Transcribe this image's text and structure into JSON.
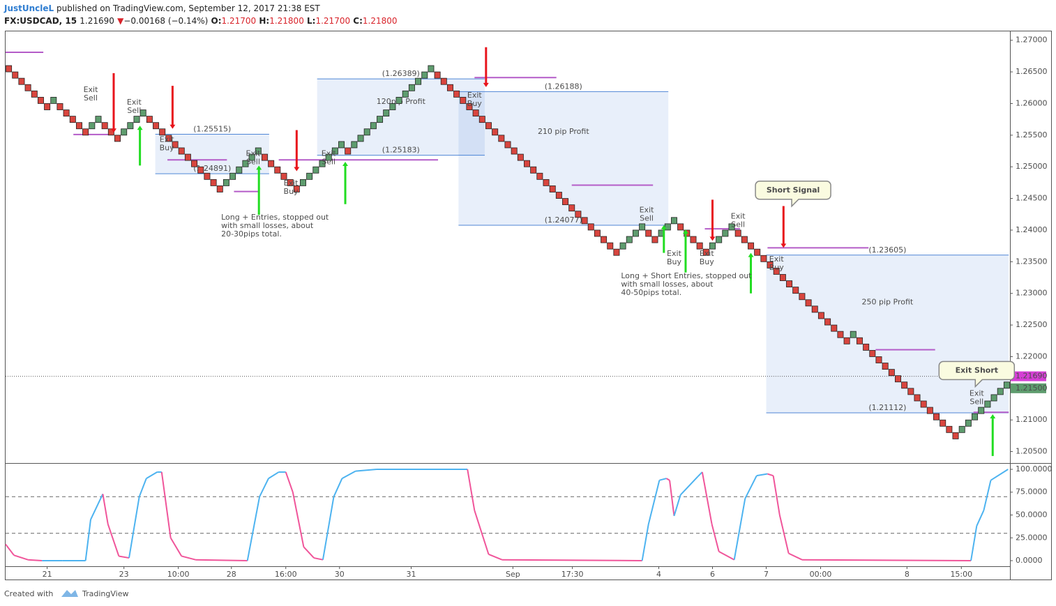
{
  "header": {
    "author": "JustUncleL",
    "published": "published on TradingView.com, September 12, 2017 21:38 EST",
    "symbol": "FX:USDCAD, 15",
    "last": "1.21690",
    "arrow": "▼",
    "change": "−0.00168 (−0.14%)",
    "ohlc": [
      {
        "label": "O:",
        "value": "1.21700"
      },
      {
        "label": "H:",
        "value": "1.21800"
      },
      {
        "label": "L:",
        "value": "1.21700"
      },
      {
        "label": "C:",
        "value": "1.21800"
      }
    ]
  },
  "chart_data": [
    {
      "type": "renko",
      "up_color": "#5e9c6e",
      "down_color": "#d8453e",
      "xlim": [
        0,
        157
      ],
      "ylim": [
        1.2033,
        1.2714
      ],
      "yticks": [
        {
          "value": 1.27,
          "label": "1.27000"
        },
        {
          "value": 1.265,
          "label": "1.26500"
        },
        {
          "value": 1.26,
          "label": "1.26000"
        },
        {
          "value": 1.255,
          "label": "1.25500"
        },
        {
          "value": 1.25,
          "label": "1.25000"
        },
        {
          "value": 1.245,
          "label": "1.24500"
        },
        {
          "value": 1.24,
          "label": "1.24000"
        },
        {
          "value": 1.235,
          "label": "1.23500"
        },
        {
          "value": 1.23,
          "label": "1.23000"
        },
        {
          "value": 1.225,
          "label": "1.22500"
        },
        {
          "value": 1.22,
          "label": "1.22000"
        },
        {
          "value": 1.215,
          "label": "1.21500"
        },
        {
          "value": 1.21,
          "label": "1.21000"
        },
        {
          "value": 1.205,
          "label": "1.20500"
        }
      ],
      "open": [
        1.266,
        1.265,
        1.264,
        1.263,
        1.262,
        1.261,
        1.26,
        1.26,
        1.26,
        1.259,
        1.258,
        1.257,
        1.256,
        1.256,
        1.257,
        1.257,
        1.256,
        1.255,
        1.255,
        1.256,
        1.257,
        1.258,
        1.258,
        1.257,
        1.256,
        1.255,
        1.254,
        1.253,
        1.252,
        1.251,
        1.25,
        1.249,
        1.248,
        1.247,
        1.247,
        1.248,
        1.249,
        1.25,
        1.251,
        1.252,
        1.252,
        1.251,
        1.25,
        1.249,
        1.248,
        1.247,
        1.247,
        1.248,
        1.249,
        1.25,
        1.251,
        1.252,
        1.253,
        1.253,
        1.253,
        1.254,
        1.255,
        1.256,
        1.257,
        1.258,
        1.259,
        1.26,
        1.261,
        1.262,
        1.263,
        1.264,
        1.265,
        1.265,
        1.264,
        1.263,
        1.262,
        1.261,
        1.26,
        1.259,
        1.258,
        1.257,
        1.256,
        1.255,
        1.254,
        1.253,
        1.252,
        1.251,
        1.25,
        1.249,
        1.248,
        1.247,
        1.246,
        1.245,
        1.244,
        1.243,
        1.242,
        1.241,
        1.24,
        1.239,
        1.238,
        1.237,
        1.237,
        1.238,
        1.239,
        1.24,
        1.24,
        1.239,
        1.239,
        1.24,
        1.241,
        1.241,
        1.24,
        1.239,
        1.238,
        1.237,
        1.237,
        1.238,
        1.239,
        1.24,
        1.24,
        1.239,
        1.238,
        1.237,
        1.236,
        1.235,
        1.234,
        1.233,
        1.232,
        1.231,
        1.23,
        1.229,
        1.228,
        1.227,
        1.226,
        1.225,
        1.224,
        1.223,
        1.223,
        1.223,
        1.222,
        1.221,
        1.22,
        1.219,
        1.218,
        1.217,
        1.216,
        1.215,
        1.214,
        1.213,
        1.212,
        1.211,
        1.21,
        1.209,
        1.208,
        1.208,
        1.209,
        1.21,
        1.211,
        1.212,
        1.213,
        1.214,
        1.215
      ],
      "close": [
        1.265,
        1.264,
        1.263,
        1.262,
        1.261,
        1.26,
        1.259,
        1.261,
        1.259,
        1.258,
        1.257,
        1.256,
        1.255,
        1.257,
        1.258,
        1.256,
        1.255,
        1.254,
        1.256,
        1.257,
        1.258,
        1.259,
        1.257,
        1.256,
        1.255,
        1.254,
        1.253,
        1.252,
        1.251,
        1.25,
        1.249,
        1.248,
        1.247,
        1.246,
        1.248,
        1.249,
        1.25,
        1.251,
        1.252,
        1.253,
        1.251,
        1.25,
        1.249,
        1.248,
        1.247,
        1.246,
        1.248,
        1.249,
        1.25,
        1.251,
        1.252,
        1.253,
        1.254,
        1.252,
        1.254,
        1.255,
        1.256,
        1.257,
        1.258,
        1.259,
        1.26,
        1.261,
        1.262,
        1.263,
        1.264,
        1.265,
        1.266,
        1.264,
        1.263,
        1.262,
        1.261,
        1.26,
        1.259,
        1.258,
        1.257,
        1.256,
        1.255,
        1.254,
        1.253,
        1.252,
        1.251,
        1.25,
        1.249,
        1.248,
        1.247,
        1.246,
        1.245,
        1.244,
        1.243,
        1.242,
        1.241,
        1.24,
        1.239,
        1.238,
        1.237,
        1.236,
        1.238,
        1.239,
        1.24,
        1.241,
        1.239,
        1.238,
        1.24,
        1.241,
        1.242,
        1.24,
        1.239,
        1.238,
        1.237,
        1.236,
        1.238,
        1.239,
        1.24,
        1.241,
        1.239,
        1.238,
        1.237,
        1.236,
        1.235,
        1.234,
        1.233,
        1.232,
        1.231,
        1.23,
        1.229,
        1.228,
        1.227,
        1.226,
        1.225,
        1.224,
        1.223,
        1.222,
        1.224,
        1.222,
        1.221,
        1.22,
        1.219,
        1.218,
        1.217,
        1.216,
        1.215,
        1.214,
        1.213,
        1.212,
        1.211,
        1.21,
        1.209,
        1.208,
        1.207,
        1.209,
        1.21,
        1.211,
        1.212,
        1.213,
        1.214,
        1.215,
        1.216
      ],
      "zones": [
        {
          "x": [
            48.7,
            74.9
          ],
          "y": [
            1.25183,
            1.26389
          ],
          "top_label": "(1.26389)",
          "bottom_label": "(1.25183)",
          "label": "120pip Profit"
        },
        {
          "x": [
            70.8,
            103.6
          ],
          "y": [
            1.24077,
            1.26188
          ],
          "top_label": "(1.26188)",
          "bottom_label": "(1.24077)",
          "label": "210 pip Profit"
        },
        {
          "x": [
            118.9,
            156.8
          ],
          "y": [
            1.21112,
            1.23605
          ],
          "top_label": "(1.23605)",
          "bottom_label": "(1.21112)",
          "label": "250 pip Profit"
        },
        {
          "x": [
            23.4,
            41.2
          ],
          "y": [
            1.24891,
            1.25515
          ],
          "top_label": "(1.25515)",
          "bottom_label": "(1.24891)"
        }
      ],
      "stops": [
        {
          "x": [
            0,
            5.9
          ],
          "y": 1.2681
        },
        {
          "x": [
            10.6,
            16.6
          ],
          "y": 1.2551
        },
        {
          "x": [
            25.3,
            34.6
          ],
          "y": 1.2511
        },
        {
          "x": [
            35.7,
            39.5
          ],
          "y": 1.2461
        },
        {
          "x": [
            42.7,
            67.6
          ],
          "y": 1.2511
        },
        {
          "x": [
            73.3,
            86.1
          ],
          "y": 1.2641
        },
        {
          "x": [
            88.5,
            101.2
          ],
          "y": 1.2471
        },
        {
          "x": [
            109.3,
            114.8
          ],
          "y": 1.2402
        },
        {
          "x": [
            119.1,
            134.9
          ],
          "y": 1.2372
        },
        {
          "x": [
            136,
            145.3
          ],
          "y": 1.2211
        },
        {
          "x": [
            151.3,
            156.8
          ],
          "y": 1.2112
        }
      ],
      "price_lines": [
        {
          "value": 1.2169,
          "label": "1.21690",
          "color": "#d63fd6",
          "dotted": true
        },
        {
          "value": 1.215,
          "label": "1.21500",
          "color": "#5e9c6e"
        }
      ],
      "arrows": [
        {
          "x": 16.9,
          "from": 1.2648,
          "to": 1.2554,
          "color": "#e8141c"
        },
        {
          "x": 26.1,
          "from": 1.2628,
          "to": 1.256,
          "color": "#e8141c"
        },
        {
          "x": 45.5,
          "from": 1.2558,
          "to": 1.2493,
          "color": "#e8141c"
        },
        {
          "x": 75.1,
          "from": 1.2689,
          "to": 1.2626,
          "color": "#e8141c"
        },
        {
          "x": 110.5,
          "from": 1.2448,
          "to": 1.2383,
          "color": "#e8141c"
        },
        {
          "x": 121.6,
          "from": 1.2438,
          "to": 1.2372,
          "color": "#e8141c"
        },
        {
          "x": 21.0,
          "from": 1.2502,
          "to": 1.2565,
          "color": "#22dd22"
        },
        {
          "x": 39.6,
          "from": 1.2424,
          "to": 1.2502,
          "color": "#22dd22"
        },
        {
          "x": 53.1,
          "from": 1.2441,
          "to": 1.2508,
          "color": "#22dd22"
        },
        {
          "x": 102.9,
          "from": 1.2364,
          "to": 1.2408,
          "color": "#22dd22"
        },
        {
          "x": 106.3,
          "from": 1.2333,
          "to": 1.2401,
          "color": "#22dd22"
        },
        {
          "x": 116.5,
          "from": 1.23,
          "to": 1.2364,
          "color": "#22dd22"
        },
        {
          "x": 154.3,
          "from": 1.2043,
          "to": 1.2109,
          "color": "#22dd22"
        }
      ],
      "notes": [
        {
          "x": 13.3,
          "y": 1.2615,
          "lines": [
            "Exit",
            "Sell"
          ]
        },
        {
          "x": 20.1,
          "y": 1.2595,
          "lines": [
            "Exit",
            "Sell"
          ]
        },
        {
          "x": 25.2,
          "y": 1.2536,
          "lines": [
            "Exit",
            "Buy"
          ]
        },
        {
          "x": 38.7,
          "y": 1.2514,
          "lines": [
            "Exit",
            "Sell"
          ]
        },
        {
          "x": 44.6,
          "y": 1.2467,
          "lines": [
            "Exit",
            "Buy"
          ]
        },
        {
          "x": 50.5,
          "y": 1.2514,
          "lines": [
            "Exit",
            "Sell"
          ]
        },
        {
          "x": 73.3,
          "y": 1.2606,
          "lines": [
            "Exit",
            "Buy"
          ]
        },
        {
          "x": 100.2,
          "y": 1.2425,
          "lines": [
            "Exit",
            "Sell"
          ]
        },
        {
          "x": 104.5,
          "y": 1.2356,
          "lines": [
            "Exit",
            "Buy"
          ]
        },
        {
          "x": 109.6,
          "y": 1.2356,
          "lines": [
            "Exit",
            "Buy"
          ]
        },
        {
          "x": 114.5,
          "y": 1.2415,
          "lines": [
            "Exit",
            "Sell"
          ]
        },
        {
          "x": 120.5,
          "y": 1.2347,
          "lines": [
            "Exit",
            "Buy"
          ]
        },
        {
          "x": 151.8,
          "y": 1.2135,
          "lines": [
            "Exit",
            "Sell"
          ]
        }
      ],
      "comments": [
        {
          "x": 33.7,
          "y": 1.242,
          "lines": [
            "Long + Entries, stopped out",
            "with small losses, about",
            "20-30pips total."
          ]
        },
        {
          "x": 96.2,
          "y": 1.2327,
          "lines": [
            "Long + Short Entries, stopped out",
            "with small losses, about",
            "40-50pips total."
          ]
        }
      ],
      "callouts": [
        {
          "x": 123.1,
          "y": 1.2463,
          "text": "Short Signal"
        },
        {
          "x": 151.8,
          "y": 1.2178,
          "text": "Exit Short"
        }
      ]
    },
    {
      "type": "line",
      "up_color": "#4db3f0",
      "down_color": "#f0559a",
      "xlim": [
        0,
        157
      ],
      "ylim": [
        -6.1,
        106.1
      ],
      "yticks": [
        {
          "value": 100,
          "label": "100.0000"
        },
        {
          "value": 75,
          "label": "75.0000"
        },
        {
          "value": 50,
          "label": "50.0000"
        },
        {
          "value": 25,
          "label": "25.0000"
        },
        {
          "value": 0,
          "label": "0.0000"
        }
      ],
      "levels": [
        70,
        30
      ],
      "xticks": [
        {
          "value": 6.5,
          "label": "21"
        },
        {
          "value": 18.5,
          "label": "23"
        },
        {
          "value": 27,
          "label": "10:00"
        },
        {
          "value": 35.3,
          "label": "28"
        },
        {
          "value": 43.8,
          "label": "16:00"
        },
        {
          "value": 52.2,
          "label": "30"
        },
        {
          "value": 63.4,
          "label": "31"
        },
        {
          "value": 79.3,
          "label": "Sep"
        },
        {
          "value": 88.6,
          "label": "17:30"
        },
        {
          "value": 102.1,
          "label": "4"
        },
        {
          "value": 110.5,
          "label": "6"
        },
        {
          "value": 118.9,
          "label": "7"
        },
        {
          "value": 127.4,
          "label": "00:00"
        },
        {
          "value": 140.9,
          "label": "8"
        },
        {
          "value": 149.4,
          "label": "15:00"
        }
      ],
      "x": [
        0,
        1.3,
        3.5,
        5.7,
        8.9,
        12.5,
        13.3,
        15.2,
        16,
        17.7,
        19.3,
        20.9,
        22,
        23.7,
        24.4,
        25.8,
        27.5,
        29.7,
        37.8,
        39.7,
        41.1,
        42.7,
        43.8,
        44.9,
        46.6,
        48.2,
        49.6,
        51.3,
        52.6,
        54.7,
        58,
        72.2,
        73.3,
        75.5,
        77.6,
        99.5,
        100.5,
        102.2,
        103.3,
        103.8,
        104.5,
        105.5,
        108.2,
        108.9,
        110.4,
        111.5,
        113.9,
        115.6,
        117.4,
        119.1,
        120,
        121,
        122.4,
        124.5,
        150.9,
        151.8,
        152.9,
        154,
        156.7
      ],
      "values": [
        18,
        6,
        1,
        0,
        0,
        0,
        45,
        73,
        40,
        5,
        3,
        70,
        90,
        97,
        97,
        25,
        5,
        1,
        0,
        70,
        90,
        97,
        97,
        75,
        15,
        3,
        1,
        70,
        90,
        98,
        100,
        100,
        55,
        7,
        1,
        0,
        40,
        88,
        90,
        88,
        49,
        72,
        92,
        97,
        40,
        10,
        1,
        68,
        93,
        95,
        93,
        50,
        8,
        1,
        0,
        38,
        55,
        88,
        100
      ]
    }
  ],
  "footer": {
    "created": "Created with",
    "brand": "TradingView"
  }
}
